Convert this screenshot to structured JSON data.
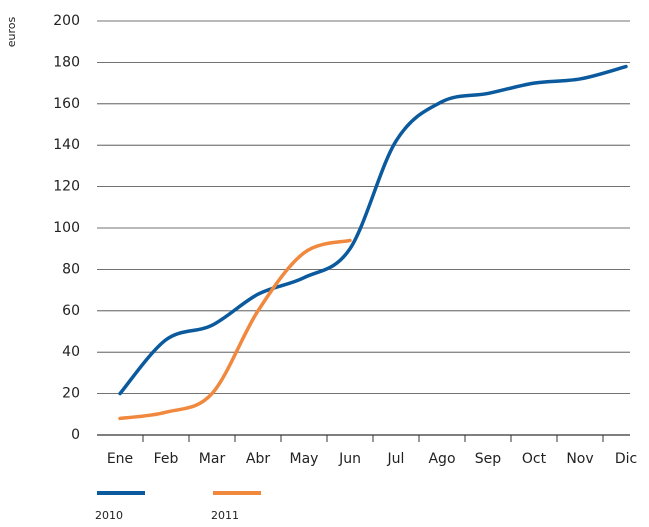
{
  "chart_data": {
    "type": "line",
    "y_label": "euros",
    "categories": [
      "Ene",
      "Feb",
      "Mar",
      "Abr",
      "May",
      "Jun",
      "Jul",
      "Ago",
      "Sep",
      "Oct",
      "Nov",
      "Dic"
    ],
    "series": [
      {
        "name": "2010",
        "color": "#0b5a9e",
        "values": [
          20,
          46,
          53,
          68,
          76,
          90,
          142,
          161,
          165,
          170,
          172,
          178
        ]
      },
      {
        "name": "2011",
        "color": "#f0883e",
        "values": [
          8,
          11,
          20,
          60,
          88,
          94,
          null,
          null,
          null,
          null,
          null,
          null
        ]
      }
    ],
    "ylim": [
      0,
      200
    ],
    "yticks": [
      0,
      20,
      40,
      60,
      80,
      100,
      120,
      140,
      160,
      180,
      200
    ],
    "grid": true
  }
}
